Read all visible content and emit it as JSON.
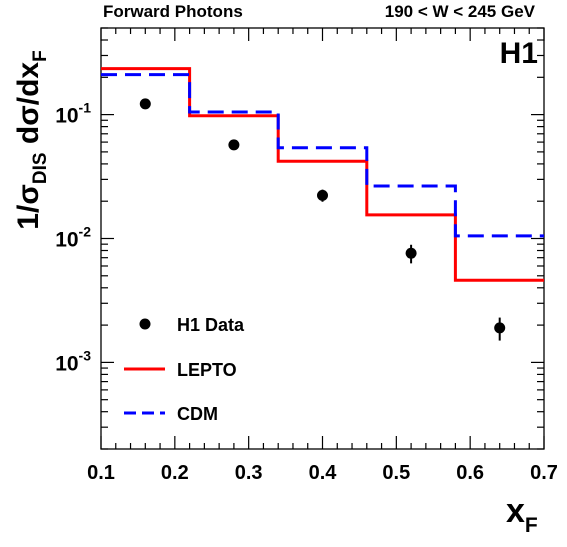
{
  "chart_data": {
    "type": "scatter",
    "title_left": "Forward Photons",
    "title_right": "190 < W < 245 GeV",
    "experiment_label": "H1",
    "xlabel": {
      "main": "x",
      "sub": "F"
    },
    "ylabel": {
      "p1": "1/σ",
      "p1sub": "DIS",
      "p2": " dσ/dx",
      "p2sub": "F"
    },
    "xlim": [
      0.1,
      0.7
    ],
    "ylim": [
      0.0002,
      0.5
    ],
    "yscale": "log",
    "grid": false,
    "legend_position": "bottom-left",
    "x_ticks": [
      "0.1",
      "0.2",
      "0.3",
      "0.4",
      "0.5",
      "0.6",
      "0.7"
    ],
    "y_ticks": [
      {
        "value": 0.1,
        "base": "10",
        "exp": "-1"
      },
      {
        "value": 0.01,
        "base": "10",
        "exp": "-2"
      },
      {
        "value": 0.001,
        "base": "10",
        "exp": "-3"
      }
    ],
    "series": [
      {
        "name": "H1 Data",
        "kind": "points",
        "color": "#000000",
        "points": [
          {
            "x": 0.16,
            "y": 0.122,
            "err": 0.008
          },
          {
            "x": 0.28,
            "y": 0.057,
            "err": 0.004
          },
          {
            "x": 0.4,
            "y": 0.0223,
            "err": 0.0025
          },
          {
            "x": 0.52,
            "y": 0.0076,
            "err": 0.0013
          },
          {
            "x": 0.64,
            "y": 0.0019,
            "err": 0.0004
          }
        ]
      },
      {
        "name": "LEPTO",
        "kind": "step",
        "color": "#ff0000",
        "dash": "solid",
        "bins": [
          {
            "x0": 0.1,
            "x1": 0.22,
            "y": 0.235
          },
          {
            "x0": 0.22,
            "x1": 0.34,
            "y": 0.098
          },
          {
            "x0": 0.34,
            "x1": 0.46,
            "y": 0.042
          },
          {
            "x0": 0.46,
            "x1": 0.58,
            "y": 0.0155
          },
          {
            "x0": 0.58,
            "x1": 0.7,
            "y": 0.0046
          }
        ]
      },
      {
        "name": "CDM",
        "kind": "step",
        "color": "#0000ff",
        "dash": "dashed",
        "bins": [
          {
            "x0": 0.1,
            "x1": 0.22,
            "y": 0.21
          },
          {
            "x0": 0.22,
            "x1": 0.34,
            "y": 0.105
          },
          {
            "x0": 0.34,
            "x1": 0.46,
            "y": 0.054
          },
          {
            "x0": 0.46,
            "x1": 0.58,
            "y": 0.0265
          },
          {
            "x0": 0.58,
            "x1": 0.7,
            "y": 0.0105
          }
        ]
      }
    ]
  }
}
